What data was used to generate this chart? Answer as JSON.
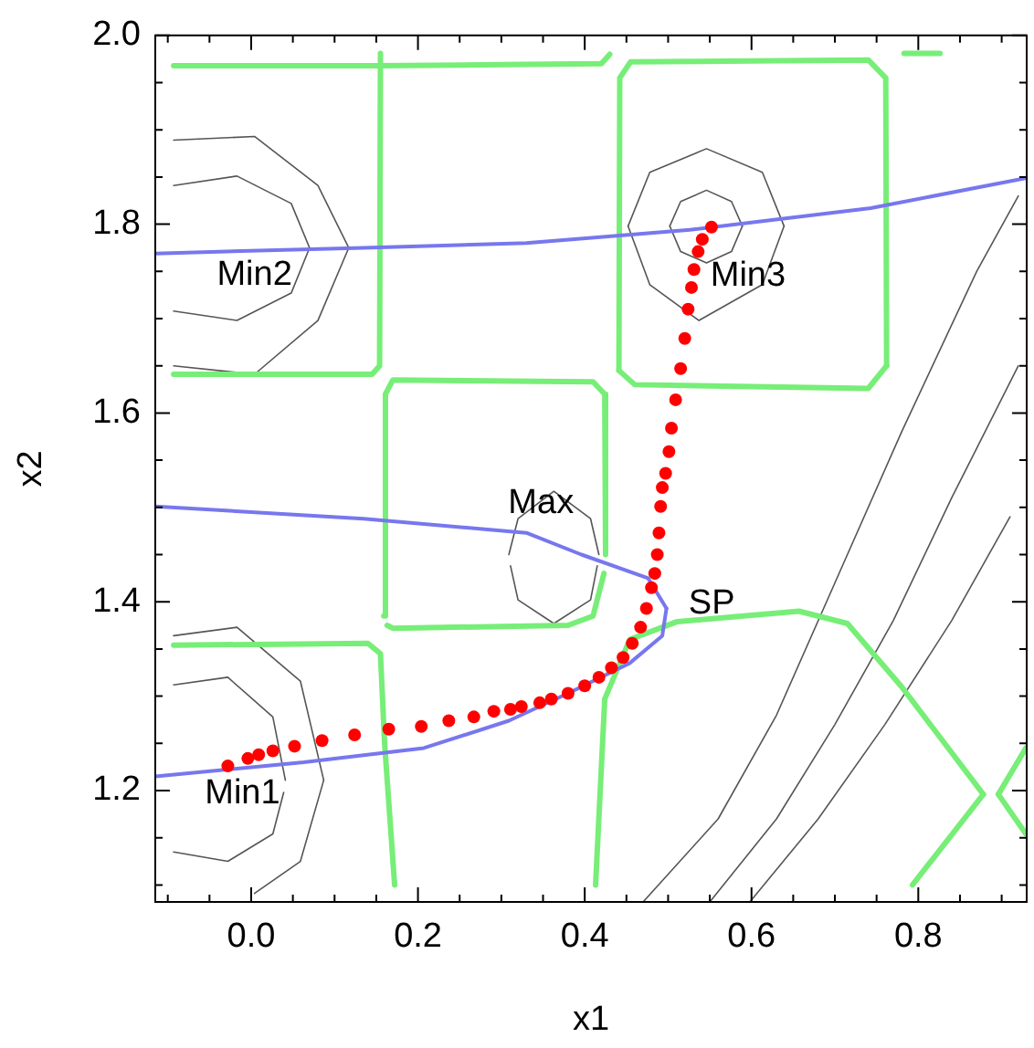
{
  "chart_data": {
    "type": "line",
    "xlabel": "x1",
    "ylabel": "x2",
    "xlim": [
      -0.115,
      0.93
    ],
    "ylim": [
      1.082,
      2.0
    ],
    "xticks": [
      {
        "value": -0.1,
        "label": null
      },
      {
        "value": -0.05,
        "label": null
      },
      {
        "value": 0,
        "label": "0.0"
      },
      {
        "value": 0.05,
        "label": null
      },
      {
        "value": 0.1,
        "label": null
      },
      {
        "value": 0.15,
        "label": null
      },
      {
        "value": 0.2,
        "label": "0.2"
      },
      {
        "value": 0.25,
        "label": null
      },
      {
        "value": 0.3,
        "label": null
      },
      {
        "value": 0.35,
        "label": null
      },
      {
        "value": 0.4,
        "label": "0.4"
      },
      {
        "value": 0.45,
        "label": null
      },
      {
        "value": 0.5,
        "label": null
      },
      {
        "value": 0.55,
        "label": null
      },
      {
        "value": 0.6,
        "label": "0.6"
      },
      {
        "value": 0.65,
        "label": null
      },
      {
        "value": 0.7,
        "label": null
      },
      {
        "value": 0.75,
        "label": null
      },
      {
        "value": 0.8,
        "label": "0.8"
      },
      {
        "value": 0.85,
        "label": null
      },
      {
        "value": 0.9,
        "label": null
      }
    ],
    "yticks": [
      {
        "value": 1.1,
        "label": null
      },
      {
        "value": 1.15,
        "label": null
      },
      {
        "value": 1.2,
        "label": "1.2"
      },
      {
        "value": 1.25,
        "label": null
      },
      {
        "value": 1.3,
        "label": null
      },
      {
        "value": 1.35,
        "label": null
      },
      {
        "value": 1.4,
        "label": "1.4"
      },
      {
        "value": 1.45,
        "label": null
      },
      {
        "value": 1.5,
        "label": null
      },
      {
        "value": 1.55,
        "label": null
      },
      {
        "value": 1.6,
        "label": "1.6"
      },
      {
        "value": 1.65,
        "label": null
      },
      {
        "value": 1.7,
        "label": null
      },
      {
        "value": 1.75,
        "label": null
      },
      {
        "value": 1.8,
        "label": "1.8"
      },
      {
        "value": 1.85,
        "label": null
      },
      {
        "value": 1.9,
        "label": null
      },
      {
        "value": 1.95,
        "label": null
      },
      {
        "value": 2.0,
        "label": "2.0"
      }
    ],
    "grid": false,
    "legend": false,
    "series": [
      {
        "color": "#555555",
        "x": [
          0.502,
          0.515,
          0.546,
          0.576,
          0.589
        ],
        "values": [
          1.798,
          1.824,
          1.836,
          1.824,
          1.798
        ]
      },
      {
        "color": "#555555",
        "x": [
          0.502,
          0.515,
          0.546,
          0.576,
          0.589
        ],
        "values": [
          1.798,
          1.771,
          1.759,
          1.771,
          1.798
        ]
      },
      {
        "color": "#555555",
        "x": [
          0.452,
          0.478,
          0.546,
          0.613,
          0.639
        ],
        "values": [
          1.798,
          1.855,
          1.88,
          1.855,
          1.798
        ]
      },
      {
        "color": "#555555",
        "x": [
          0.452,
          0.478,
          0.537,
          0.613,
          0.639
        ],
        "values": [
          1.798,
          1.736,
          1.698,
          1.736,
          1.798
        ]
      },
      {
        "color": "#555555",
        "x": [
          -0.093,
          -0.017,
          0.048,
          0.07
        ],
        "values": [
          1.841,
          1.851,
          1.822,
          1.775
        ]
      },
      {
        "color": "#555555",
        "x": [
          -0.093,
          -0.017,
          0.048,
          0.07
        ],
        "values": [
          1.708,
          1.698,
          1.727,
          1.775
        ]
      },
      {
        "color": "#555555",
        "x": [
          -0.093,
          0.004,
          0.08,
          0.117
        ],
        "values": [
          1.889,
          1.893,
          1.841,
          1.775
        ]
      },
      {
        "color": "#555555",
        "x": [
          -0.093,
          0.004,
          0.08,
          0.117
        ],
        "values": [
          1.65,
          1.641,
          1.698,
          1.775
        ]
      },
      {
        "color": "#555555",
        "x": [
          0.309,
          0.32,
          0.363,
          0.407,
          0.417
        ],
        "values": [
          1.45,
          1.488,
          1.517,
          1.488,
          1.45
        ]
      },
      {
        "color": "#555555",
        "x": [
          0.311,
          0.32,
          0.363,
          0.407,
          0.415
        ],
        "values": [
          1.438,
          1.402,
          1.377,
          1.402,
          1.438
        ]
      },
      {
        "color": "#555555",
        "x": [
          -0.093,
          -0.028,
          0.026,
          0.041
        ],
        "values": [
          1.312,
          1.32,
          1.278,
          1.211
        ]
      },
      {
        "color": "#555555",
        "x": [
          -0.093,
          -0.028,
          0.026,
          0.039
        ],
        "values": [
          1.135,
          1.125,
          1.154,
          1.198
        ]
      },
      {
        "color": "#555555",
        "x": [
          -0.093,
          -0.017,
          0.059,
          0.087
        ],
        "values": [
          1.364,
          1.373,
          1.316,
          1.211
        ]
      },
      {
        "color": "#555555",
        "x": [
          0.004,
          0.059,
          0.087
        ],
        "values": [
          1.091,
          1.125,
          1.211
        ]
      },
      {
        "color": "#555555",
        "x": [
          0.47,
          0.56,
          0.63,
          0.7,
          0.78,
          0.87,
          0.92
        ],
        "values": [
          1.082,
          1.17,
          1.28,
          1.42,
          1.58,
          1.75,
          1.83
        ]
      },
      {
        "color": "#555555",
        "x": [
          0.55,
          0.63,
          0.7,
          0.77,
          0.84,
          0.92
        ],
        "values": [
          1.082,
          1.17,
          1.27,
          1.38,
          1.51,
          1.65
        ]
      },
      {
        "color": "#555555",
        "x": [
          0.598,
          0.68,
          0.76,
          0.84,
          0.91
        ],
        "values": [
          1.082,
          1.17,
          1.27,
          1.38,
          1.49
        ]
      },
      {
        "color": "#77ee77",
        "x": [
          -0.093,
          0.15,
          0.3,
          0.42,
          0.43
        ],
        "values": [
          1.968,
          1.968,
          1.969,
          1.97,
          1.98
        ]
      },
      {
        "color": "#77ee77",
        "x": [
          -0.093,
          0.145,
          0.154,
          0.155
        ],
        "values": [
          1.641,
          1.641,
          1.65,
          1.981
        ]
      },
      {
        "color": "#77ee77",
        "x": [
          0.159,
          0.161,
          0.17,
          0.41,
          0.424,
          0.425
        ],
        "values": [
          1.385,
          1.62,
          1.635,
          1.633,
          1.62,
          1.45
        ]
      },
      {
        "color": "#77ee77",
        "x": [
          0.163,
          0.17,
          0.38,
          0.41,
          0.423
        ],
        "values": [
          1.375,
          1.372,
          1.375,
          1.385,
          1.43
        ]
      },
      {
        "color": "#77ee77",
        "x": [
          0.441,
          0.442,
          0.455,
          0.74,
          0.761,
          0.762
        ],
        "values": [
          1.645,
          1.955,
          1.972,
          1.974,
          1.955,
          1.65
        ]
      },
      {
        "color": "#77ee77",
        "x": [
          0.441,
          0.46,
          0.74,
          0.762
        ],
        "values": [
          1.645,
          1.63,
          1.626,
          1.65
        ]
      },
      {
        "color": "#77ee77",
        "x": [
          0.783,
          0.826
        ],
        "values": [
          1.981,
          1.981
        ]
      },
      {
        "color": "#77ee77",
        "x": [
          -0.093,
          0.14,
          0.155,
          0.16,
          0.172
        ],
        "values": [
          1.354,
          1.356,
          1.345,
          1.25,
          1.1
        ]
      },
      {
        "color": "#77ee77",
        "x": [
          0.413,
          0.424,
          0.454,
          0.511,
          0.657,
          0.715,
          0.78,
          0.878
        ],
        "values": [
          1.1,
          1.297,
          1.36,
          1.379,
          1.39,
          1.377,
          1.31,
          1.196
        ]
      },
      {
        "color": "#77ee77",
        "x": [
          0.793,
          0.878
        ],
        "values": [
          1.1,
          1.196
        ]
      },
      {
        "color": "#77ee77",
        "x": [
          0.896,
          0.929
        ],
        "values": [
          1.196,
          1.245
        ]
      },
      {
        "color": "#77ee77",
        "x": [
          0.896,
          0.929
        ],
        "values": [
          1.196,
          1.154
        ]
      },
      {
        "color": "#7777ee",
        "x": [
          -0.115,
          0.135,
          0.33,
          0.526,
          0.743,
          0.93
        ],
        "values": [
          1.769,
          1.775,
          1.78,
          1.794,
          1.817,
          1.849
        ]
      },
      {
        "color": "#7777ee",
        "x": [
          -0.115,
          0.135,
          0.33,
          0.396,
          0.476,
          0.498
        ],
        "values": [
          1.501,
          1.488,
          1.473,
          1.45,
          1.425,
          1.393
        ]
      },
      {
        "color": "#7777ee",
        "x": [
          -0.115,
          0.063,
          0.207,
          0.309,
          0.38,
          0.454,
          0.493,
          0.498
        ],
        "values": [
          1.215,
          1.23,
          1.245,
          1.274,
          1.303,
          1.335,
          1.364,
          1.393
        ]
      },
      {
        "type": "scatter",
        "color": "#ff0000",
        "x": [
          -0.028,
          -0.004,
          0.009,
          0.026,
          0.052,
          0.085,
          0.124,
          0.165,
          0.204,
          0.237,
          0.267,
          0.291,
          0.311,
          0.324,
          0.346,
          0.36,
          0.38,
          0.4,
          0.417,
          0.432,
          0.446,
          0.457,
          0.467,
          0.474,
          0.48,
          0.484,
          0.487,
          0.489,
          0.491,
          0.493,
          0.497,
          0.501,
          0.504,
          0.509,
          0.515,
          0.52,
          0.524,
          0.528,
          0.531,
          0.536,
          0.541,
          0.552
        ],
        "values": [
          1.226,
          1.234,
          1.238,
          1.242,
          1.247,
          1.253,
          1.259,
          1.265,
          1.268,
          1.274,
          1.278,
          1.284,
          1.286,
          1.289,
          1.293,
          1.297,
          1.303,
          1.311,
          1.32,
          1.33,
          1.341,
          1.356,
          1.373,
          1.393,
          1.415,
          1.43,
          1.45,
          1.473,
          1.501,
          1.521,
          1.536,
          1.559,
          1.584,
          1.614,
          1.647,
          1.679,
          1.71,
          1.733,
          1.752,
          1.771,
          1.784,
          1.797
        ]
      }
    ],
    "annotations": [
      {
        "text": "Min1",
        "x": -0.028,
        "y": 1.226
      },
      {
        "text": "Min2",
        "x": 0.004,
        "y": 1.773
      },
      {
        "text": "Min3",
        "x": 0.552,
        "y": 1.797
      },
      {
        "text": "Max",
        "x": 0.33,
        "y": 1.473
      },
      {
        "text": "SP",
        "x": 0.48,
        "y": 1.415
      }
    ]
  }
}
